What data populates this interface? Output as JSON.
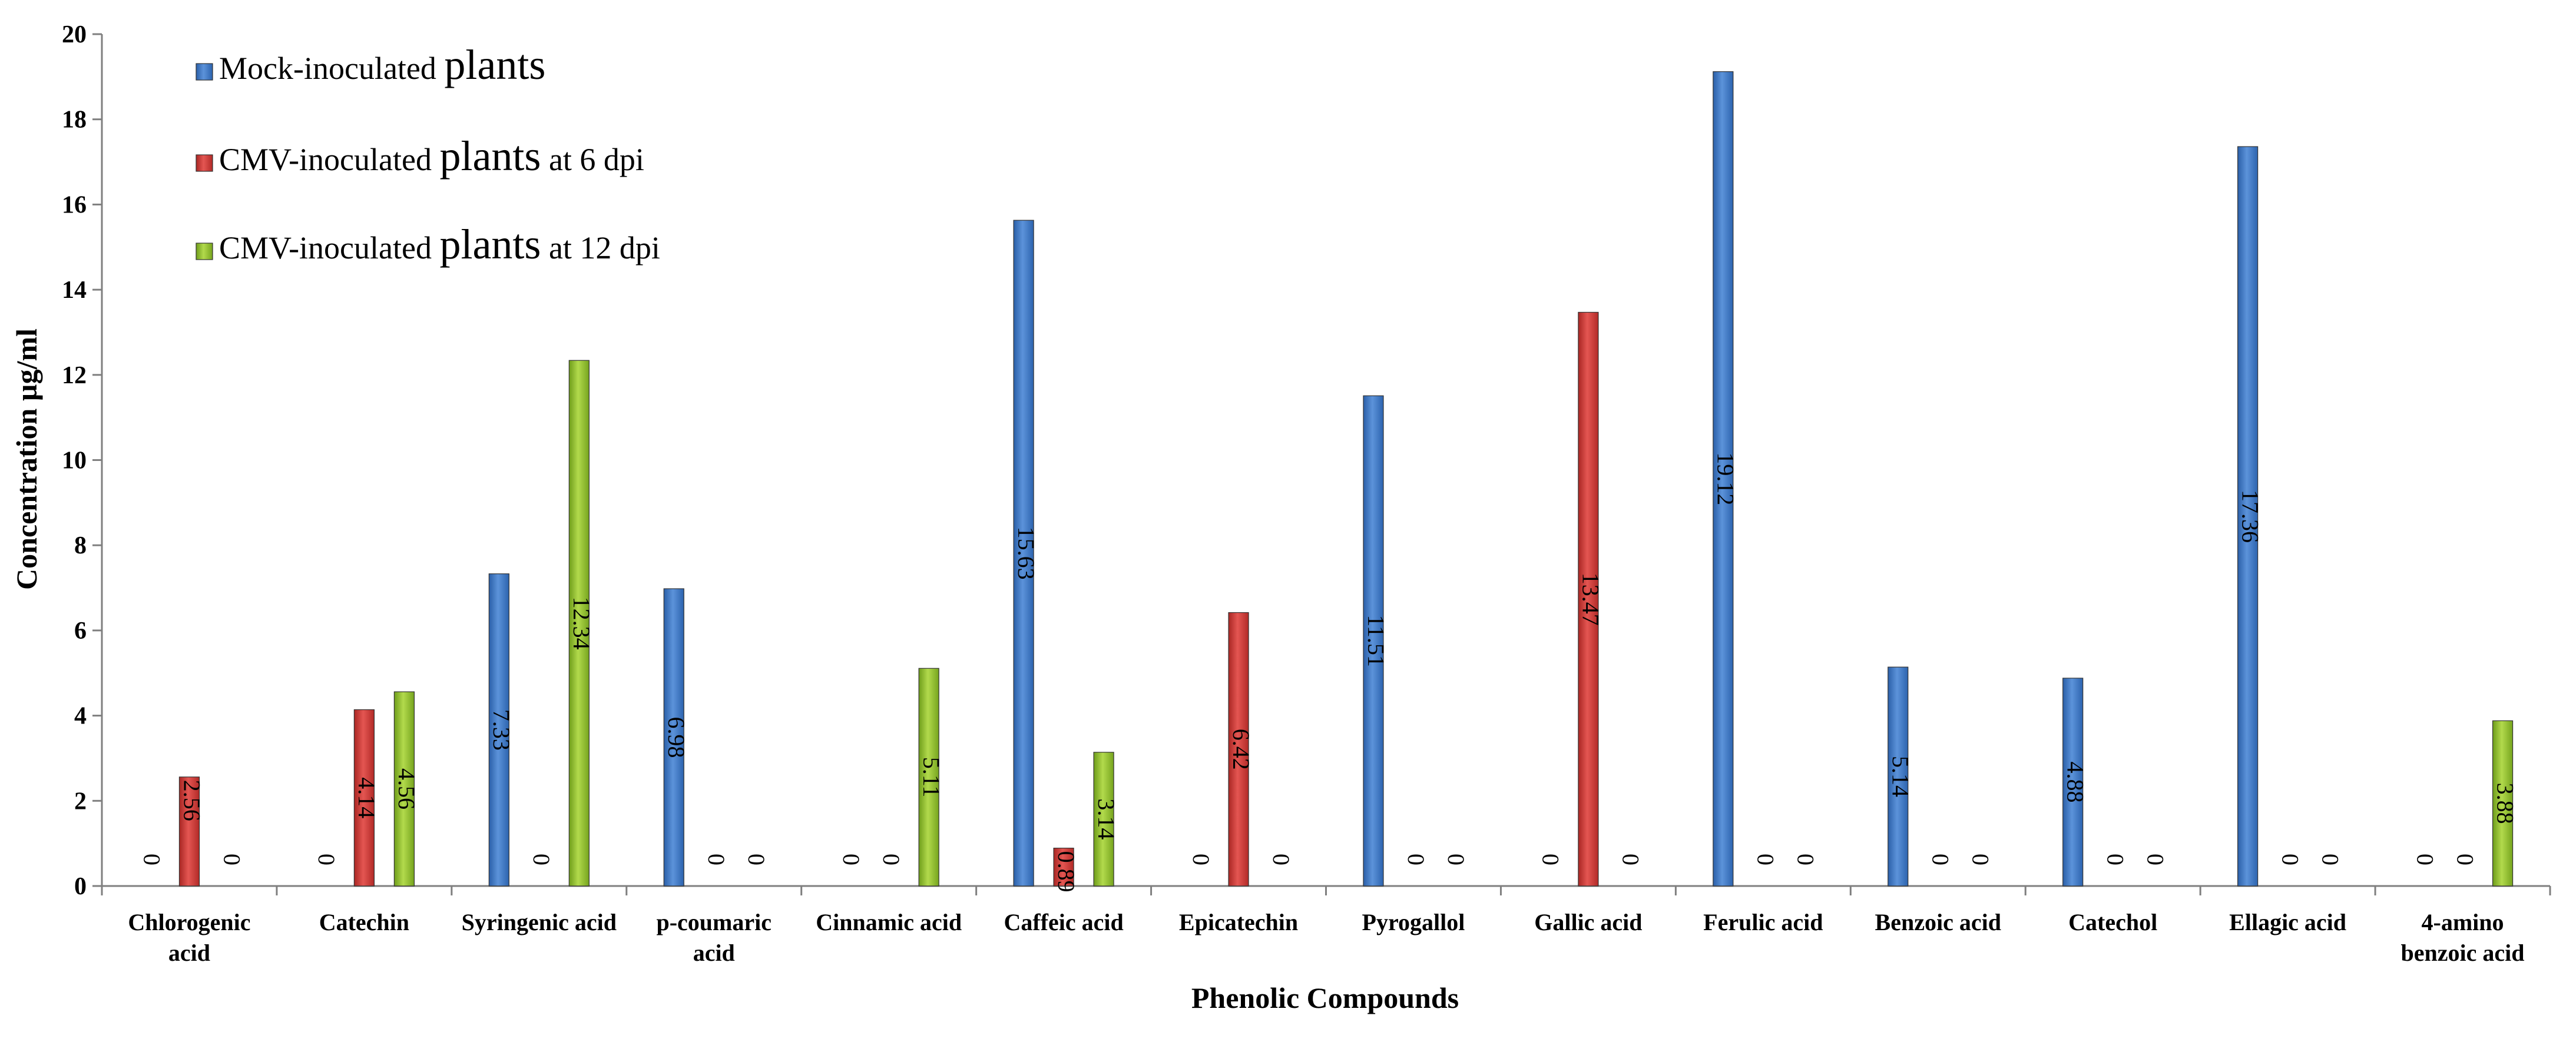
{
  "chart_data": {
    "type": "bar",
    "xlabel": "Phenolic Compounds",
    "ylabel": "Concentration µg/ml",
    "ylim": [
      0,
      20
    ],
    "yticks": [
      0,
      2,
      4,
      6,
      8,
      10,
      12,
      14,
      16,
      18,
      20
    ],
    "grid": false,
    "legend_position": "top-left",
    "categories": [
      [
        "Chlorogenic",
        "acid"
      ],
      [
        "Catechin"
      ],
      [
        "Syringenic acid"
      ],
      [
        "p-coumaric",
        "acid"
      ],
      [
        "Cinnamic acid"
      ],
      [
        "Caffeic acid"
      ],
      [
        "Epicatechin"
      ],
      [
        "Pyrogallol"
      ],
      [
        "Gallic acid"
      ],
      [
        "Ferulic acid"
      ],
      [
        "Benzoic acid"
      ],
      [
        "Catechol"
      ],
      [
        "Ellagic acid"
      ],
      [
        "4-amino",
        "benzoic acid"
      ]
    ],
    "series": [
      {
        "name_parts": [
          "Mock-inoculated ",
          "plants",
          ""
        ],
        "color": "#3A76C4",
        "values": [
          0,
          0,
          7.33,
          6.98,
          0,
          15.63,
          0,
          11.51,
          0,
          19.12,
          5.14,
          4.88,
          17.36,
          0
        ]
      },
      {
        "name_parts": [
          "CMV-inoculated ",
          "plants",
          " at 6 dpi"
        ],
        "color": "#D33A35",
        "values": [
          2.56,
          4.14,
          0,
          0,
          0,
          0.89,
          6.42,
          0,
          13.47,
          0,
          0,
          0,
          0,
          0
        ]
      },
      {
        "name_parts": [
          "CMV-inoculated ",
          "plants",
          " at 12 dpi"
        ],
        "color": "#8DBE2C",
        "values": [
          0,
          4.56,
          12.34,
          0,
          5.11,
          3.14,
          0,
          0,
          0,
          0,
          0,
          0,
          0,
          3.88
        ]
      }
    ]
  }
}
